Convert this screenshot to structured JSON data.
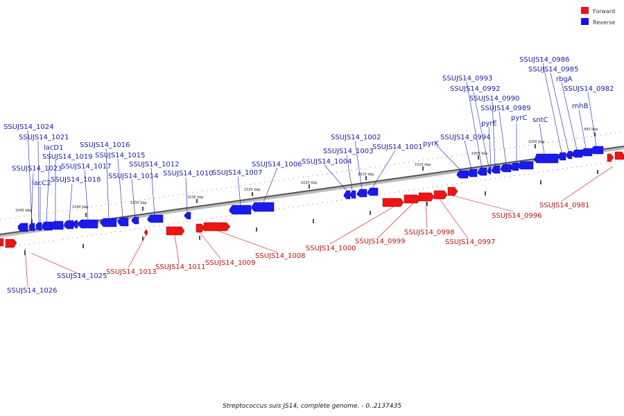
{
  "legend": [
    {
      "label": "Forward",
      "color": "#ee1111"
    },
    {
      "label": "Reverse",
      "color": "#1111ee"
    }
  ],
  "caption": "Streptococcus suis JS14, complete genome. - 0..2137435",
  "scale_labels": [
    "1045 kbp",
    "1040 kbp",
    "1035 kbp",
    "1030 kbp",
    "1025 kbp",
    "1020 kbp",
    "1015 kbp",
    "1010 kbp",
    "1005 kbp",
    "1000 kbp",
    "995 kbp"
  ],
  "reverse_genes": [
    "SSUJS14_1024",
    "SSUJS14_1021",
    "lacD1",
    "SSUJS14_1019",
    "SSUJS14_1023",
    "lacC2",
    "SSUJS14_1018",
    "SSUJS14_1017",
    "SSUJS14_1016",
    "SSUJS14_1015",
    "SSUJS14_1014",
    "SSUJS14_1012",
    "SSUJS14_1010",
    "SSUJS14_1007",
    "SSUJS14_1006",
    "SSUJS14_1004",
    "SSUJS14_1003",
    "SSUJS14_1002",
    "SSUJS14_1001",
    "pyrK",
    "SSUJS14_0994",
    "SSUJS14_0993",
    "SSUJS14_0992",
    "SSUJS14_0990",
    "pyrE",
    "SSUJS14_0989",
    "pyrC",
    "sntC",
    "SSUJS14_0986",
    "SSUJS14_0985",
    "rbgA",
    "rnhB",
    "SSUJS14_0982"
  ],
  "forward_genes": [
    "SSUJS14_1026",
    "SSUJS14_1025",
    "SSUJS14_1013",
    "SSUJS14_1011",
    "SSUJS14_1009",
    "SSUJS14_1008",
    "SSUJS14_1000",
    "SSUJS14_0999",
    "SSUJS14_0998",
    "SSUJS14_0997",
    "SSUJS14_0996",
    "SSUJS14_0981"
  ]
}
